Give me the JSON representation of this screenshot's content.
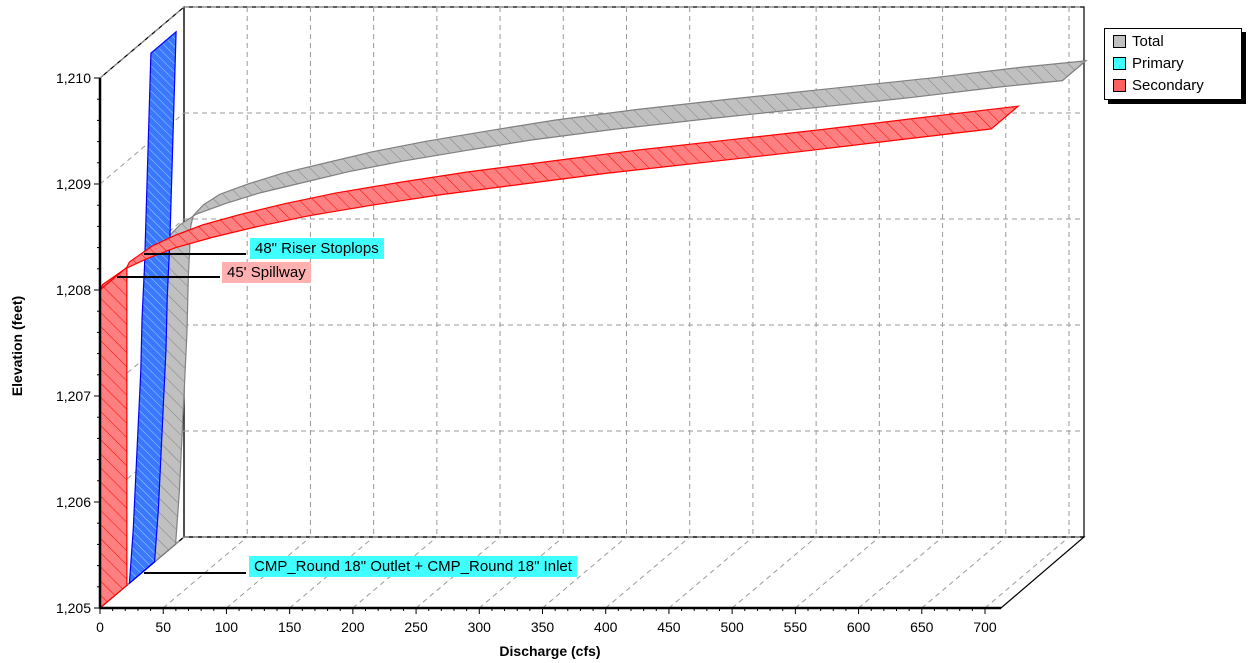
{
  "chart_data": {
    "type": "area",
    "title": "",
    "xlabel": "Discharge  (cfs)",
    "ylabel": "Elevation  (feet)",
    "xlim": [
      0,
      700
    ],
    "ylim": [
      1205,
      1210
    ],
    "x_ticks": [
      0,
      50,
      100,
      150,
      200,
      250,
      300,
      350,
      400,
      450,
      500,
      550,
      600,
      650,
      700
    ],
    "x_tick_labels": [
      "0",
      "50",
      "100",
      "150",
      "200",
      "250",
      "300",
      "350",
      "400",
      "450",
      "500",
      "550",
      "600",
      "650",
      "700"
    ],
    "y_ticks": [
      1205,
      1206,
      1207,
      1208,
      1209,
      1210
    ],
    "y_tick_labels": [
      "1,205",
      "1,206",
      "1,207",
      "1,208",
      "1,209",
      "1,210"
    ],
    "grid": true,
    "view": "3d",
    "legend_position": "top-right",
    "series": [
      {
        "name": "Total",
        "color": "#c0c0c0",
        "stroke": "#808080",
        "points": [
          [
            0,
            1205
          ],
          [
            3,
            1205.5
          ],
          [
            5,
            1206
          ],
          [
            7,
            1206.5
          ],
          [
            9,
            1207
          ],
          [
            10,
            1207.5
          ],
          [
            12,
            1208
          ],
          [
            14,
            1208.1
          ],
          [
            22,
            1208.2
          ],
          [
            35,
            1208.3
          ],
          [
            58,
            1208.4
          ],
          [
            85,
            1208.5
          ],
          [
            120,
            1208.6
          ],
          [
            155,
            1208.7
          ],
          [
            198,
            1208.8
          ],
          [
            248,
            1208.9
          ],
          [
            300,
            1209
          ],
          [
            365,
            1209.1
          ],
          [
            440,
            1209.2
          ],
          [
            520,
            1209.3
          ],
          [
            600,
            1209.4
          ],
          [
            670,
            1209.5
          ],
          [
            720,
            1209.56
          ]
        ]
      },
      {
        "name": "Primary",
        "color": "#3a78ff",
        "stroke": "#0000ff",
        "points": [
          [
            0,
            1205
          ],
          [
            3,
            1205.5
          ],
          [
            5,
            1206
          ],
          [
            7,
            1206.5
          ],
          [
            9,
            1207
          ],
          [
            10,
            1207.5
          ],
          [
            12,
            1208
          ],
          [
            12.5,
            1208.2
          ],
          [
            13,
            1208.4
          ],
          [
            13.5,
            1208.6
          ],
          [
            14,
            1208.8
          ],
          [
            14.5,
            1209
          ],
          [
            15,
            1209.2
          ],
          [
            15.5,
            1209.4
          ],
          [
            16,
            1209.6
          ],
          [
            16.5,
            1209.8
          ],
          [
            17,
            1210
          ]
        ]
      },
      {
        "name": "Secondary",
        "color": "#ff8080",
        "stroke": "#ff0000",
        "points": [
          [
            0,
            1208
          ],
          [
            2,
            1208.05
          ],
          [
            8,
            1208.1
          ],
          [
            20,
            1208.2
          ],
          [
            38,
            1208.3
          ],
          [
            60,
            1208.4
          ],
          [
            90,
            1208.5
          ],
          [
            125,
            1208.6
          ],
          [
            165,
            1208.7
          ],
          [
            215,
            1208.8
          ],
          [
            270,
            1208.9
          ],
          [
            335,
            1209
          ],
          [
            400,
            1209.1
          ],
          [
            475,
            1209.2
          ],
          [
            550,
            1209.3
          ],
          [
            620,
            1209.4
          ],
          [
            705,
            1209.52
          ]
        ]
      }
    ],
    "annotations": [
      {
        "text": "48\" Riser Stoplops",
        "discharge": 12,
        "elevation": 1208.35,
        "color": "#40ffff"
      },
      {
        "text": "45' Spillway",
        "discharge": 0,
        "elevation": 1208.15,
        "color": "#ffa0a0"
      },
      {
        "text": "CMP_Round  18\" Outlet + CMP_Round  18\" Inlet",
        "discharge": 12,
        "elevation": 1205.35,
        "color": "#40ffff"
      }
    ]
  }
}
